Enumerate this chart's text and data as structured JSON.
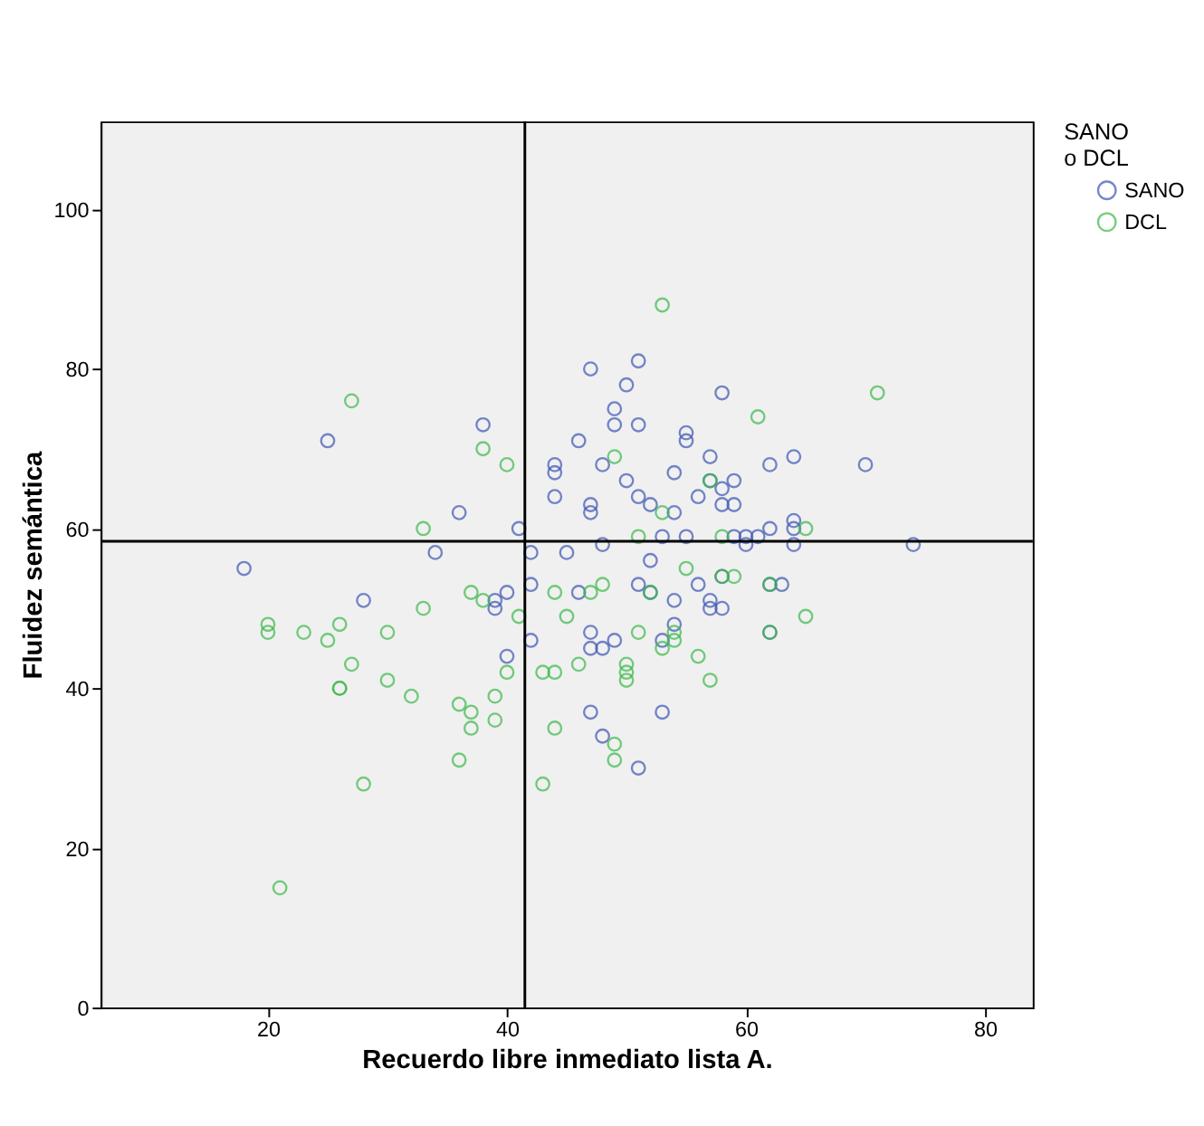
{
  "chart_data": {
    "type": "scatter",
    "xlabel": "Recuerdo libre inmediato lista A.",
    "ylabel": "Fluidez semántica",
    "legend_title": "SANO\no DCL",
    "legend": "top right",
    "marker": "circle",
    "grid": false,
    "xlim": [
      6,
      84
    ],
    "ylim": [
      0,
      111
    ],
    "xticks": [
      20,
      40,
      60,
      80
    ],
    "yticks": [
      0,
      20,
      40,
      60,
      80,
      100
    ],
    "ref_lines": [
      {
        "axis": "x",
        "value": 41.5,
        "color": "#000000"
      },
      {
        "axis": "y",
        "value": 58.4,
        "color": "#000000"
      }
    ],
    "series": [
      {
        "name": "SANO",
        "color": "#3e55b4",
        "x": [
          18,
          25,
          28,
          34,
          36,
          38,
          39,
          39,
          40,
          40,
          41,
          42,
          42,
          42,
          44,
          44,
          44,
          45,
          46,
          46,
          47,
          47,
          47,
          47,
          47,
          47,
          48,
          48,
          48,
          48,
          49,
          49,
          49,
          50,
          50,
          51,
          51,
          51,
          51,
          51,
          52,
          52,
          52,
          53,
          53,
          53,
          54,
          54,
          54,
          54,
          55,
          55,
          55,
          56,
          56,
          57,
          57,
          57,
          57,
          58,
          58,
          58,
          58,
          58,
          59,
          59,
          59,
          60,
          60,
          61,
          62,
          62,
          62,
          62,
          63,
          64,
          64,
          64,
          64,
          70,
          74
        ],
        "values": [
          55,
          71,
          51,
          57,
          62,
          73,
          50,
          51,
          52,
          44,
          60,
          57,
          53,
          46,
          68,
          67,
          64,
          57,
          71,
          52,
          80,
          63,
          62,
          47,
          45,
          37,
          68,
          58,
          45,
          34,
          75,
          73,
          46,
          78,
          66,
          81,
          73,
          64,
          53,
          30,
          63,
          56,
          52,
          59,
          37,
          46,
          67,
          62,
          51,
          48,
          72,
          71,
          59,
          64,
          53,
          69,
          66,
          51,
          50,
          77,
          65,
          63,
          54,
          50,
          66,
          63,
          59,
          59,
          58,
          59,
          68,
          60,
          53,
          47,
          53,
          69,
          61,
          60,
          58,
          68,
          58
        ]
      },
      {
        "name": "DCL",
        "color": "#3cb94a",
        "x": [
          20,
          20,
          21,
          23,
          25,
          26,
          26,
          26,
          27,
          27,
          28,
          30,
          30,
          32,
          33,
          33,
          36,
          36,
          37,
          37,
          37,
          38,
          38,
          39,
          39,
          40,
          40,
          41,
          43,
          43,
          44,
          44,
          44,
          45,
          46,
          47,
          48,
          49,
          49,
          49,
          50,
          50,
          50,
          51,
          51,
          52,
          53,
          53,
          53,
          54,
          54,
          55,
          56,
          57,
          57,
          58,
          58,
          59,
          61,
          62,
          62,
          65,
          65,
          71
        ],
        "values": [
          48,
          47,
          15,
          47,
          46,
          48,
          40,
          40,
          76,
          43,
          28,
          47,
          41,
          39,
          60,
          50,
          38,
          31,
          52,
          37,
          35,
          70,
          51,
          39,
          36,
          68,
          42,
          49,
          42,
          28,
          52,
          42,
          35,
          49,
          43,
          52,
          53,
          69,
          33,
          31,
          43,
          42,
          41,
          59,
          47,
          52,
          88,
          62,
          45,
          46,
          47,
          55,
          44,
          66,
          41,
          59,
          54,
          54,
          74,
          53,
          47,
          60,
          49,
          77
        ]
      }
    ]
  }
}
